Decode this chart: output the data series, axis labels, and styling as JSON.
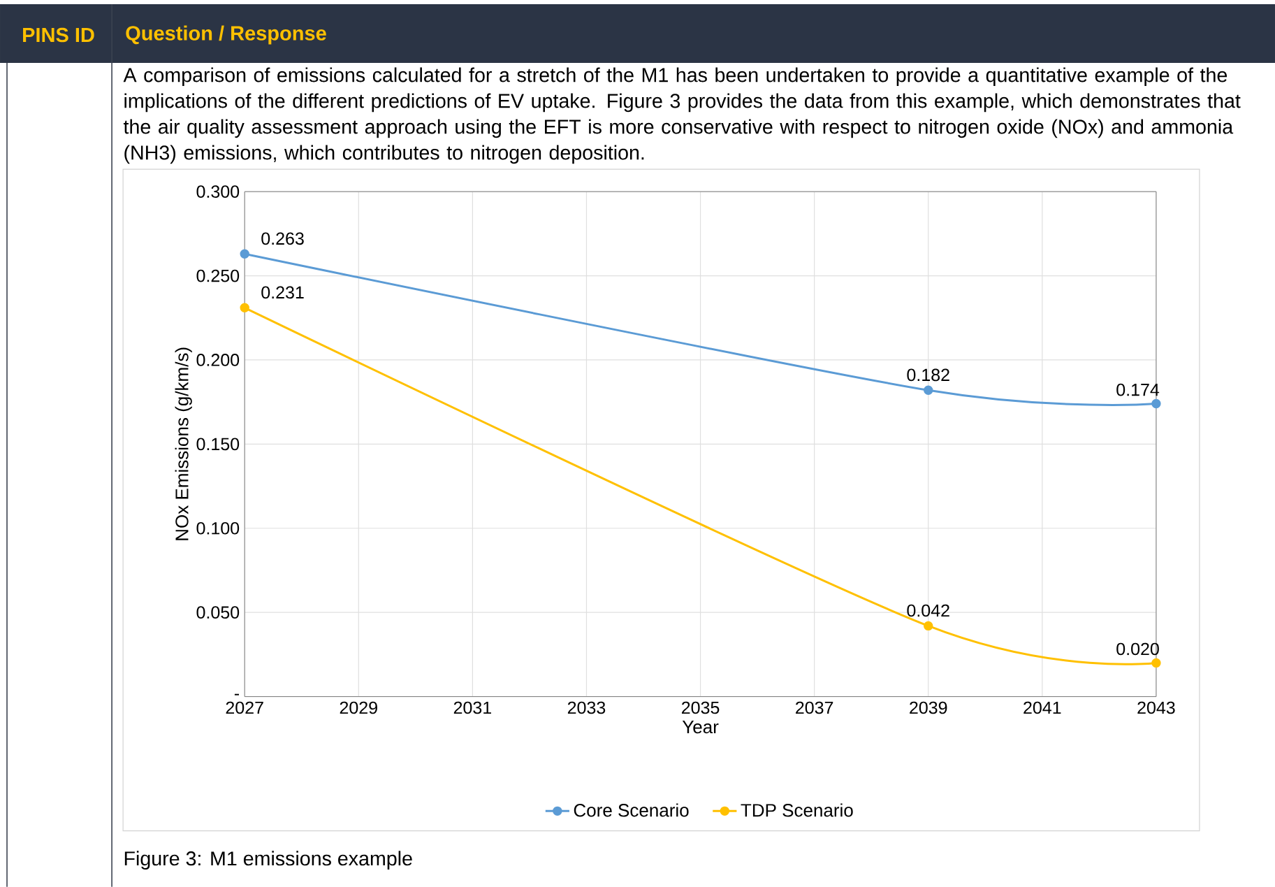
{
  "chart_data": {
    "type": "line",
    "annotations": [
      "PINS ID",
      "Question / Response",
      "A comparison of emissions calculated for a stretch of the M1 has been undertaken to provide a quantitative example of the implications of the different predictions of EV uptake. Figure 3 provides the data from this example, which demonstrates that the air quality assessment approach using the EFT is more conservative with respect to nitrogen oxide (NOx) and ammonia (NH3) emissions, which contributes to nitrogen deposition.",
      "Figure 3: M1 emissions example"
    ],
    "xlabel": "Year",
    "ylabel": "NOx Emissions (g/km/s)",
    "x": [
      2027,
      2039,
      2043
    ],
    "series": [
      {
        "name": "Core Scenario",
        "color": "#5b9bd5",
        "values": [
          0.263,
          0.182,
          0.174
        ],
        "value_labels": [
          "0.263",
          "0.182",
          "0.174"
        ]
      },
      {
        "name": "TDP Scenario",
        "color": "#ffc000",
        "values": [
          0.231,
          0.042,
          0.02
        ],
        "value_labels": [
          "0.231",
          "0.042",
          "0.020"
        ]
      }
    ],
    "xlim": [
      2027,
      2043
    ],
    "xticks": [
      2027,
      2029,
      2031,
      2033,
      2035,
      2037,
      2039,
      2041,
      2043
    ],
    "ylim": [
      0,
      0.3
    ],
    "yticks": [
      {
        "value": 0,
        "label": "-"
      },
      {
        "value": 0.05,
        "label": "0.050"
      },
      {
        "value": 0.1,
        "label": "0.100"
      },
      {
        "value": 0.15,
        "label": "0.150"
      },
      {
        "value": 0.2,
        "label": "0.200"
      },
      {
        "value": 0.25,
        "label": "0.250"
      },
      {
        "value": 0.3,
        "label": "0.300"
      }
    ],
    "grid": true,
    "legend": "bottom",
    "marker": "circle"
  }
}
